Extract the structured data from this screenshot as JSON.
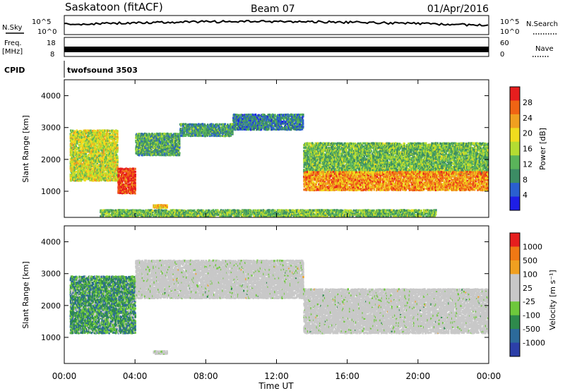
{
  "header": {
    "site": "Saskatoon (fitACF)",
    "beam": "Beam 07",
    "date": "01/Apr/2016"
  },
  "top_panels": {
    "nsky_label": "N.Sky",
    "nsearch_label": "N.Search",
    "nsky_ticks": [
      "10^5",
      "10^0"
    ],
    "nsearch_ticks": [
      "10^5",
      "10^0"
    ],
    "freq_label": "Freq.",
    "freq_unit": "[MHz]",
    "freq_ticks": [
      "18",
      "8"
    ],
    "nave_label": "Nave",
    "nave_ticks": [
      "60",
      "0"
    ],
    "cpid_label": "CPID",
    "cpid_value": "twofsound 3503"
  },
  "colors": {
    "power_scale": [
      "#1e1ee6",
      "#2a5fd0",
      "#3c8c64",
      "#5ab45a",
      "#b4dc32",
      "#f0dc1e",
      "#f0a020",
      "#f06414",
      "#e61e1e"
    ],
    "velocity_scale": [
      "#2c3fa8",
      "#2c6a9a",
      "#2e8a4c",
      "#6ec83c",
      "#c8c8c8",
      "#c8c8c8",
      "#f0a020",
      "#f07814",
      "#e61e1e"
    ]
  },
  "chart_data": [
    {
      "type": "heatmap",
      "name": "power",
      "xlabel": "",
      "ylabel": "Slant Range [km]",
      "yticks": [
        "1000",
        "2000",
        "3000",
        "4000"
      ],
      "ylim": [
        180,
        4500
      ],
      "colorbar_label": "Power [dB]",
      "colorbar_ticks": [
        "4",
        "8",
        "12",
        "16",
        "20",
        "24",
        "28"
      ],
      "bands": [
        {
          "x": [
            0.3,
            3.0
          ],
          "y": [
            1300,
            2900
          ],
          "level": 0.55
        },
        {
          "x": [
            3.0,
            4.0
          ],
          "y": [
            900,
            1700
          ],
          "level": 0.9
        },
        {
          "x": [
            4.0,
            6.5
          ],
          "y": [
            2100,
            2800
          ],
          "level": 0.35
        },
        {
          "x": [
            6.5,
            9.5
          ],
          "y": [
            2700,
            3100
          ],
          "level": 0.3
        },
        {
          "x": [
            9.5,
            13.5
          ],
          "y": [
            2900,
            3400
          ],
          "level": 0.25
        },
        {
          "x": [
            13.5,
            24.0
          ],
          "y": [
            1500,
            2500
          ],
          "level": 0.4
        },
        {
          "x": [
            13.5,
            24.0
          ],
          "y": [
            1000,
            1600
          ],
          "level": 0.75
        },
        {
          "x": [
            5.0,
            5.8
          ],
          "y": [
            450,
            550
          ],
          "level": 0.7
        },
        {
          "x": [
            2.0,
            21.0
          ],
          "y": [
            180,
            400
          ],
          "level": 0.4
        }
      ]
    },
    {
      "type": "heatmap",
      "name": "velocity",
      "xlabel": "Time UT",
      "ylabel": "Slant Range [km]",
      "xticks": [
        "00:00",
        "04:00",
        "08:00",
        "12:00",
        "16:00",
        "20:00",
        "00:00"
      ],
      "yticks": [
        "1000",
        "2000",
        "3000",
        "4000"
      ],
      "ylim": [
        180,
        4500
      ],
      "colorbar_label": "Velocity [m s⁻¹]",
      "colorbar_ticks": [
        "1000",
        "500",
        "100",
        "25",
        "-25",
        "-100",
        "-500",
        "-1000"
      ],
      "bands": [
        {
          "x": [
            0.3,
            4.0
          ],
          "y": [
            1100,
            2900
          ],
          "level": 0.3
        },
        {
          "x": [
            4.0,
            13.5
          ],
          "y": [
            2200,
            3400
          ],
          "level": 0.5
        },
        {
          "x": [
            13.5,
            24.0
          ],
          "y": [
            1100,
            2500
          ],
          "level": 0.5
        },
        {
          "x": [
            5.0,
            5.8
          ],
          "y": [
            450,
            550
          ],
          "level": 0.5
        }
      ]
    }
  ]
}
